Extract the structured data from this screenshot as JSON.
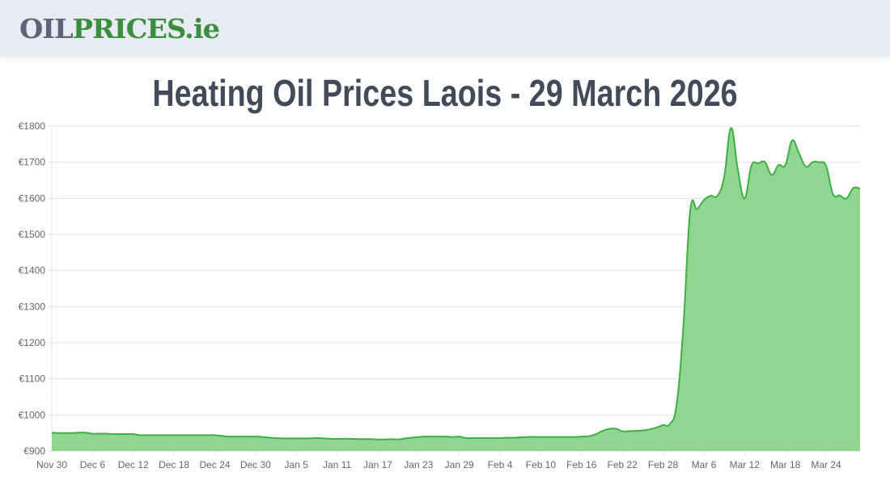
{
  "header": {
    "logo_part1": "OIL",
    "logo_part2": "PRICES.ie"
  },
  "page_title": "Heating Oil Prices Laois - 29 March 2026",
  "chart_data": {
    "type": "area",
    "title": "",
    "xlabel": "",
    "ylabel": "",
    "ylim": [
      900,
      1800
    ],
    "y_ticks": [
      "€900",
      "€1000",
      "€1100",
      "€1200",
      "€1300",
      "€1400",
      "€1500",
      "€1600",
      "€1700",
      "€1800"
    ],
    "y_tick_values": [
      900,
      1000,
      1100,
      1200,
      1300,
      1400,
      1500,
      1600,
      1700,
      1800
    ],
    "grid": true,
    "legend": "none",
    "line_color": "#3cb043",
    "fill_color": "#90d690",
    "x_tick_labels": [
      "Nov 30",
      "Dec 6",
      "Dec 12",
      "Dec 18",
      "Dec 24",
      "Dec 30",
      "Jan 5",
      "Jan 11",
      "Jan 17",
      "Jan 23",
      "Jan 29",
      "Feb 4",
      "Feb 10",
      "Feb 16",
      "Feb 22",
      "Feb 28",
      "Mar 6",
      "Mar 12",
      "Mar 18",
      "Mar 24"
    ],
    "x": [
      "Nov 30",
      "Dec 1",
      "Dec 2",
      "Dec 3",
      "Dec 4",
      "Dec 5",
      "Dec 6",
      "Dec 7",
      "Dec 8",
      "Dec 9",
      "Dec 10",
      "Dec 11",
      "Dec 12",
      "Dec 13",
      "Dec 14",
      "Dec 15",
      "Dec 16",
      "Dec 17",
      "Dec 18",
      "Dec 19",
      "Dec 20",
      "Dec 21",
      "Dec 22",
      "Dec 23",
      "Dec 24",
      "Dec 25",
      "Dec 26",
      "Dec 27",
      "Dec 28",
      "Dec 29",
      "Dec 30",
      "Dec 31",
      "Jan 1",
      "Jan 2",
      "Jan 3",
      "Jan 4",
      "Jan 5",
      "Jan 6",
      "Jan 7",
      "Jan 8",
      "Jan 9",
      "Jan 10",
      "Jan 11",
      "Jan 12",
      "Jan 13",
      "Jan 14",
      "Jan 15",
      "Jan 16",
      "Jan 17",
      "Jan 18",
      "Jan 19",
      "Jan 20",
      "Jan 21",
      "Jan 22",
      "Jan 23",
      "Jan 24",
      "Jan 25",
      "Jan 26",
      "Jan 27",
      "Jan 28",
      "Jan 29",
      "Jan 30",
      "Jan 31",
      "Feb 1",
      "Feb 2",
      "Feb 3",
      "Feb 4",
      "Feb 5",
      "Feb 6",
      "Feb 7",
      "Feb 8",
      "Feb 9",
      "Feb 10",
      "Feb 11",
      "Feb 12",
      "Feb 13",
      "Feb 14",
      "Feb 15",
      "Feb 16",
      "Feb 17",
      "Feb 18",
      "Feb 19",
      "Feb 20",
      "Feb 21",
      "Feb 22",
      "Feb 23",
      "Feb 24",
      "Feb 25",
      "Feb 26",
      "Feb 27",
      "Feb 28",
      "Mar 1",
      "Mar 2",
      "Mar 3",
      "Mar 4",
      "Mar 5",
      "Mar 6",
      "Mar 7",
      "Mar 8",
      "Mar 9",
      "Mar 10",
      "Mar 11",
      "Mar 12",
      "Mar 13",
      "Mar 14",
      "Mar 15",
      "Mar 16",
      "Mar 17",
      "Mar 18",
      "Mar 19",
      "Mar 20",
      "Mar 21",
      "Mar 22",
      "Mar 23",
      "Mar 24",
      "Mar 25",
      "Mar 26",
      "Mar 27",
      "Mar 28",
      "Mar 29"
    ],
    "values": [
      951,
      950,
      950,
      950,
      951,
      951,
      948,
      948,
      948,
      947,
      947,
      947,
      947,
      944,
      944,
      944,
      944,
      944,
      944,
      944,
      944,
      944,
      944,
      944,
      944,
      942,
      940,
      940,
      940,
      940,
      940,
      939,
      937,
      936,
      935,
      935,
      935,
      935,
      935,
      936,
      935,
      934,
      934,
      934,
      934,
      933,
      933,
      933,
      932,
      932,
      933,
      932,
      935,
      937,
      939,
      940,
      940,
      940,
      940,
      939,
      940,
      936,
      936,
      936,
      936,
      936,
      936,
      937,
      937,
      938,
      939,
      939,
      939,
      939,
      939,
      939,
      939,
      939,
      940,
      941,
      946,
      955,
      961,
      962,
      955,
      955,
      956,
      957,
      960,
      965,
      972,
      975,
      1030,
      1250,
      1567,
      1570,
      1595,
      1607,
      1607,
      1660,
      1795,
      1680,
      1600,
      1690,
      1697,
      1700,
      1665,
      1692,
      1692,
      1760,
      1725,
      1688,
      1700,
      1700,
      1690,
      1612,
      1608,
      1600,
      1628,
      1627
    ]
  }
}
